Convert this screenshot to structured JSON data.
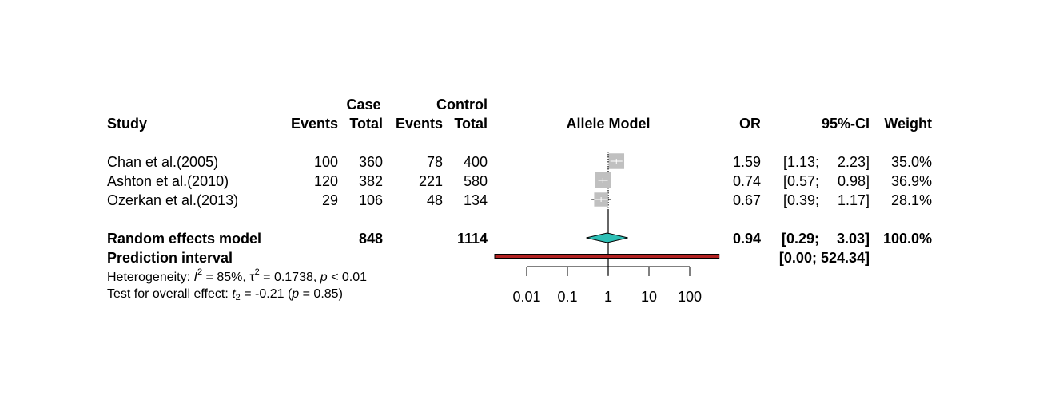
{
  "header": {
    "study": "Study",
    "case_group": "Case",
    "control_group": "Control",
    "events": "Events",
    "total": "Total",
    "plot_title": "Allele Model",
    "or": "OR",
    "ci": "95%-CI",
    "weight": "Weight"
  },
  "studies": [
    {
      "name": "Chan et al.(2005)",
      "case_events": "100",
      "case_total": "360",
      "ctrl_events": "78",
      "ctrl_total": "400",
      "or": "1.59",
      "ci_low": "[1.13;",
      "ci_high": "2.23]",
      "weight": "35.0%"
    },
    {
      "name": "Ashton et al.(2010)",
      "case_events": "120",
      "case_total": "382",
      "ctrl_events": "221",
      "ctrl_total": "580",
      "or": "0.74",
      "ci_low": "[0.57;",
      "ci_high": "0.98]",
      "weight": "36.9%"
    },
    {
      "name": "Ozerkan et al.(2013)",
      "case_events": "29",
      "case_total": "106",
      "ctrl_events": "48",
      "ctrl_total": "134",
      "or": "0.67",
      "ci_low": "[0.39;",
      "ci_high": "1.17]",
      "weight": "28.1%"
    }
  ],
  "random_effects": {
    "label": "Random effects model",
    "case_total": "848",
    "ctrl_total": "1114",
    "or": "0.94",
    "ci_low": "[0.29;",
    "ci_high": "3.03]",
    "weight": "100.0%"
  },
  "prediction": {
    "label": "Prediction interval",
    "ci": "[0.00; 524.34]"
  },
  "heterogeneity": {
    "prefix": "Heterogeneity: ",
    "i2_symbol": "I",
    "i2_value": " = 85%, ",
    "tau_symbol": "τ",
    "tau_value": " = 0.1738, ",
    "p_symbol": "p",
    "p_value": " < 0.01"
  },
  "overall_effect": {
    "prefix": "Test for overall effect: ",
    "t_symbol": "t",
    "t_df": "2",
    "t_value": " = -0.21 (",
    "p_symbol": "p",
    "p_value": " = 0.85)"
  },
  "colors": {
    "square": "#c0c0c0",
    "diamond": "#2ebfb5",
    "prediction_bar": "#b22222",
    "line": "#000000"
  },
  "chart_data": {
    "type": "forest",
    "title": "Allele Model",
    "scale": "log",
    "x_ticks": [
      0.01,
      0.1,
      1,
      10,
      100
    ],
    "x_tick_labels": [
      "0.01",
      "0.1",
      "1",
      "10",
      "100"
    ],
    "reference_line": 1,
    "studies": [
      {
        "name": "Chan et al.(2005)",
        "or": 1.59,
        "ci": [
          1.13,
          2.23
        ],
        "weight": 35.0
      },
      {
        "name": "Ashton et al.(2010)",
        "or": 0.74,
        "ci": [
          0.57,
          0.98
        ],
        "weight": 36.9
      },
      {
        "name": "Ozerkan et al.(2013)",
        "or": 0.67,
        "ci": [
          0.39,
          1.17
        ],
        "weight": 28.1
      }
    ],
    "pooled": {
      "name": "Random effects model",
      "or": 0.94,
      "ci": [
        0.29,
        3.03
      ]
    },
    "prediction_interval": [
      0.0,
      524.34
    ]
  }
}
